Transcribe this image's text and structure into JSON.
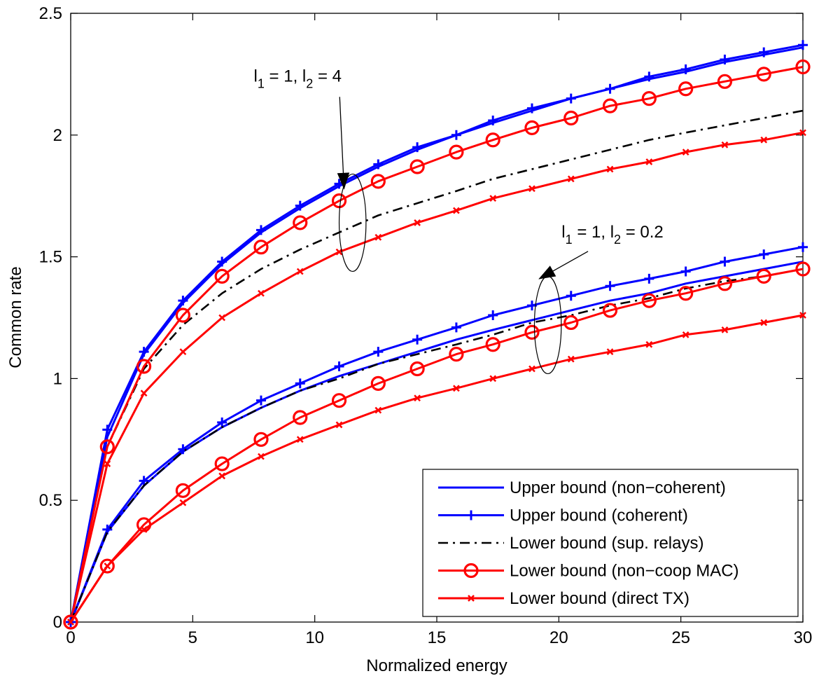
{
  "chart_data": {
    "type": "line",
    "title": "",
    "xlabel": "Normalized energy",
    "ylabel": "Common rate",
    "xlim": [
      0,
      30
    ],
    "ylim": [
      0,
      2.5
    ],
    "xticks": [
      0,
      5,
      10,
      15,
      20,
      25,
      30
    ],
    "xtick_labels": [
      "0",
      "5",
      "10",
      "15",
      "20",
      "25",
      "30"
    ],
    "yticks": [
      0,
      0.5,
      1,
      1.5,
      2,
      2.5
    ],
    "ytick_labels": [
      "0",
      "0.5",
      "1",
      "1.5",
      "2",
      "2.5"
    ],
    "grid": false,
    "legend_position": "bottom-right",
    "colors": {
      "blue": "#0000ff",
      "red": "#ff0000",
      "black": "#000000"
    },
    "x": [
      0,
      1.5,
      3.0,
      4.6,
      6.2,
      7.8,
      9.4,
      11.0,
      12.6,
      14.2,
      15.8,
      17.3,
      18.9,
      20.5,
      22.1,
      23.7,
      25.2,
      26.8,
      28.4,
      30.0
    ],
    "series": [
      {
        "name": "Upper bound (non−coherent)",
        "group": "l1=1, l2=4",
        "color": "#0000ff",
        "style": "solid",
        "marker": "none",
        "values": [
          0,
          0.76,
          1.1,
          1.31,
          1.47,
          1.6,
          1.7,
          1.79,
          1.87,
          1.94,
          2.0,
          2.05,
          2.1,
          2.15,
          2.19,
          2.23,
          2.26,
          2.3,
          2.33,
          2.36
        ]
      },
      {
        "name": "Upper bound (coherent)",
        "group": "l1=1, l2=4",
        "color": "#0000ff",
        "style": "solid",
        "marker": "plus",
        "values": [
          0,
          0.79,
          1.11,
          1.32,
          1.48,
          1.61,
          1.71,
          1.8,
          1.88,
          1.95,
          2.0,
          2.06,
          2.11,
          2.15,
          2.19,
          2.24,
          2.27,
          2.31,
          2.34,
          2.37
        ]
      },
      {
        "name": "Lower bound (sup. relays)",
        "group": "l1=1, l2=4",
        "color": "#000000",
        "style": "dashdot",
        "marker": "none",
        "values": [
          0,
          0.72,
          1.04,
          1.22,
          1.35,
          1.45,
          1.53,
          1.6,
          1.67,
          1.72,
          1.77,
          1.82,
          1.86,
          1.9,
          1.94,
          1.98,
          2.01,
          2.04,
          2.07,
          2.1
        ]
      },
      {
        "name": "Lower bound (non−coop MAC)",
        "group": "l1=1, l2=4",
        "color": "#ff0000",
        "style": "solid",
        "marker": "circle",
        "values": [
          0,
          0.72,
          1.05,
          1.26,
          1.42,
          1.54,
          1.64,
          1.73,
          1.81,
          1.87,
          1.93,
          1.98,
          2.03,
          2.07,
          2.12,
          2.15,
          2.19,
          2.22,
          2.25,
          2.28
        ]
      },
      {
        "name": "Lower bound (direct TX)",
        "group": "l1=1, l2=4",
        "color": "#ff0000",
        "style": "solid",
        "marker": "x",
        "values": [
          0,
          0.65,
          0.94,
          1.11,
          1.25,
          1.35,
          1.44,
          1.52,
          1.58,
          1.64,
          1.69,
          1.74,
          1.78,
          1.82,
          1.86,
          1.89,
          1.93,
          1.96,
          1.98,
          2.01
        ]
      },
      {
        "name": "Upper bound (non−coherent)",
        "group": "l1=1, l2=0.2",
        "color": "#0000ff",
        "style": "solid",
        "marker": "none",
        "values": [
          0,
          0.37,
          0.56,
          0.7,
          0.8,
          0.88,
          0.95,
          1.01,
          1.06,
          1.11,
          1.16,
          1.2,
          1.24,
          1.28,
          1.32,
          1.35,
          1.39,
          1.42,
          1.45,
          1.48
        ]
      },
      {
        "name": "Upper bound (coherent)",
        "group": "l1=1, l2=0.2",
        "color": "#0000ff",
        "style": "solid",
        "marker": "plus",
        "values": [
          0,
          0.38,
          0.58,
          0.71,
          0.82,
          0.91,
          0.98,
          1.05,
          1.11,
          1.16,
          1.21,
          1.26,
          1.3,
          1.34,
          1.38,
          1.41,
          1.44,
          1.48,
          1.51,
          1.54
        ]
      },
      {
        "name": "Lower bound (sup. relays)",
        "group": "l1=1, l2=0.2",
        "color": "#000000",
        "style": "dashdot",
        "marker": "none",
        "values": [
          0,
          0.37,
          0.56,
          0.7,
          0.8,
          0.88,
          0.95,
          1.0,
          1.06,
          1.1,
          1.14,
          1.18,
          1.23,
          1.26,
          1.3,
          1.33,
          1.37,
          1.4,
          1.42,
          1.45
        ]
      },
      {
        "name": "Lower bound (non−coop MAC)",
        "group": "l1=1, l2=0.2",
        "color": "#ff0000",
        "style": "solid",
        "marker": "circle",
        "values": [
          0,
          0.23,
          0.4,
          0.54,
          0.65,
          0.75,
          0.84,
          0.91,
          0.98,
          1.04,
          1.1,
          1.14,
          1.19,
          1.23,
          1.28,
          1.32,
          1.35,
          1.39,
          1.42,
          1.45
        ]
      },
      {
        "name": "Lower bound (direct TX)",
        "group": "l1=1, l2=0.2",
        "color": "#ff0000",
        "style": "solid",
        "marker": "x",
        "values": [
          0,
          0.23,
          0.38,
          0.49,
          0.6,
          0.68,
          0.75,
          0.81,
          0.87,
          0.92,
          0.96,
          1.0,
          1.04,
          1.08,
          1.11,
          1.14,
          1.18,
          1.2,
          1.23,
          1.26
        ]
      }
    ],
    "annotations": [
      {
        "text_parts": [
          "l",
          "1",
          " = 1, l",
          "2",
          " = 4"
        ],
        "x": 9.3,
        "y": 2.22,
        "arrow_to": [
          11.2,
          1.78
        ],
        "ellipse": {
          "cx": 11.55,
          "cy": 1.64,
          "rx": 0.55,
          "ry": 0.2
        }
      },
      {
        "text_parts": [
          "l",
          "1",
          " = 1, l",
          "2",
          " = 0.2"
        ],
        "x": 22.2,
        "y": 1.58,
        "arrow_to": [
          19.2,
          1.41
        ],
        "ellipse": {
          "cx": 19.55,
          "cy": 1.22,
          "rx": 0.55,
          "ry": 0.2
        }
      }
    ],
    "legend": [
      {
        "label": "Upper bound (non−coherent)",
        "color": "#0000ff",
        "style": "solid",
        "marker": "none"
      },
      {
        "label": "Upper bound (coherent)",
        "color": "#0000ff",
        "style": "solid",
        "marker": "plus"
      },
      {
        "label": "Lower bound (sup. relays)",
        "color": "#000000",
        "style": "dashdot",
        "marker": "none"
      },
      {
        "label": "Lower bound (non−coop MAC)",
        "color": "#ff0000",
        "style": "solid",
        "marker": "circle"
      },
      {
        "label": "Lower bound (direct TX)",
        "color": "#ff0000",
        "style": "solid",
        "marker": "x"
      }
    ]
  }
}
